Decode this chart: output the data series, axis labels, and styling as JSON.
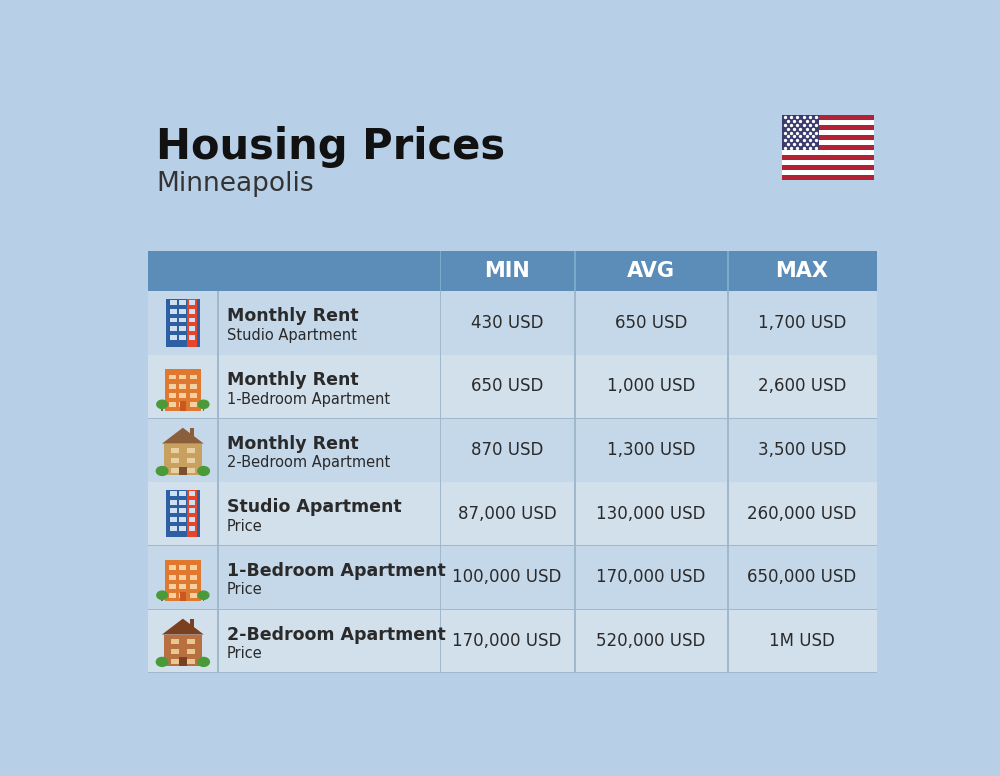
{
  "title": "Housing Prices",
  "subtitle": "Minneapolis",
  "background_color": "#b8cfe8",
  "header_bg_color": "#5b8db8",
  "row_bg_even": "#c5d8ea",
  "row_bg_odd": "#d2e0ec",
  "header_text_color": "#ffffff",
  "cell_text_color": "#2a2a2a",
  "title_color": "#111111",
  "subtitle_color": "#333333",
  "divider_color": "#a0b8cc",
  "columns": [
    "MIN",
    "AVG",
    "MAX"
  ],
  "rows": [
    {
      "bold_label": "Monthly Rent",
      "sub_label": "Studio Apartment",
      "min": "430 USD",
      "avg": "650 USD",
      "max": "1,700 USD",
      "icon_type": "studio_blue"
    },
    {
      "bold_label": "Monthly Rent",
      "sub_label": "1-Bedroom Apartment",
      "min": "650 USD",
      "avg": "1,000 USD",
      "max": "2,600 USD",
      "icon_type": "one_bed_orange"
    },
    {
      "bold_label": "Monthly Rent",
      "sub_label": "2-Bedroom Apartment",
      "min": "870 USD",
      "avg": "1,300 USD",
      "max": "3,500 USD",
      "icon_type": "two_bed_beige"
    },
    {
      "bold_label": "Studio Apartment",
      "sub_label": "Price",
      "min": "87,000 USD",
      "avg": "130,000 USD",
      "max": "260,000 USD",
      "icon_type": "studio_blue"
    },
    {
      "bold_label": "1-Bedroom Apartment",
      "sub_label": "Price",
      "min": "100,000 USD",
      "avg": "170,000 USD",
      "max": "650,000 USD",
      "icon_type": "one_bed_orange"
    },
    {
      "bold_label": "2-Bedroom Apartment",
      "sub_label": "Price",
      "min": "170,000 USD",
      "avg": "520,000 USD",
      "max": "1M USD",
      "icon_type": "two_bed_brown"
    }
  ],
  "icon_colors": {
    "studio_blue": {
      "body": "#2e5fa3",
      "accent": "#e8442a",
      "window": "#cfe0f0",
      "door": "#e8442a"
    },
    "one_bed_orange": {
      "body": "#e07830",
      "accent": "#e8442a",
      "window": "#f5d0a0",
      "door": "#c85820",
      "tree": "#4a9a3a"
    },
    "two_bed_beige": {
      "body": "#c8a060",
      "accent": "#7a5030",
      "window": "#e8d0a0",
      "door": "#7a5030",
      "roof": "#8b5e3c"
    },
    "two_bed_brown": {
      "body": "#b87040",
      "accent": "#7a4020",
      "window": "#e8c890",
      "door": "#7a4020",
      "roof": "#7a4020"
    }
  },
  "figsize": [
    10.0,
    7.76
  ],
  "dpi": 100
}
